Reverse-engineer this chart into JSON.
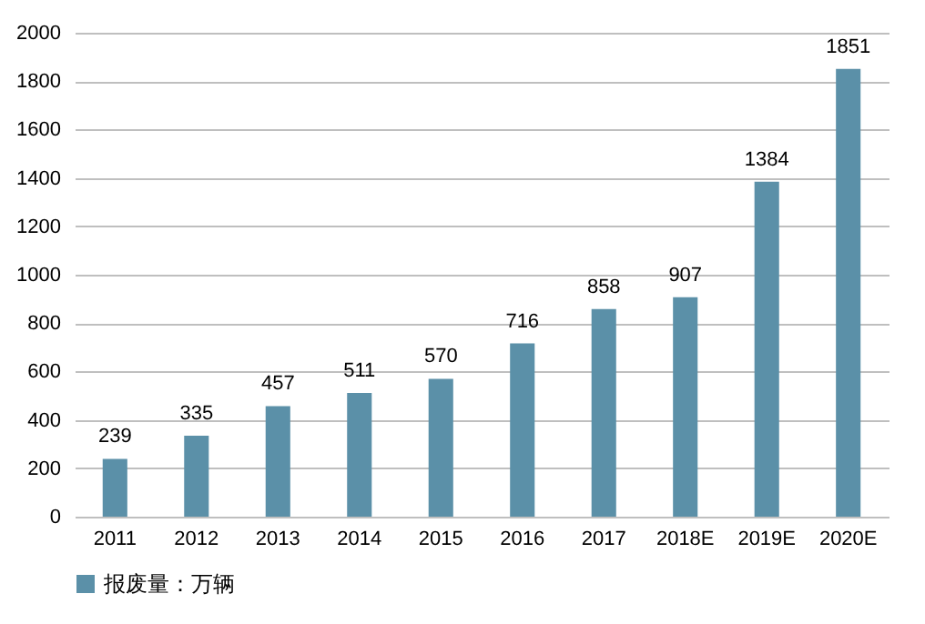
{
  "chart_data": {
    "type": "bar",
    "categories": [
      "2011",
      "2012",
      "2013",
      "2014",
      "2015",
      "2016",
      "2017",
      "2018E",
      "2019E",
      "2020E"
    ],
    "series": [
      {
        "name": "报废量：万辆",
        "color": "#5b90a8",
        "values": [
          239,
          335,
          457,
          511,
          570,
          716,
          858,
          907,
          1384,
          1851
        ]
      }
    ],
    "ylim": [
      0,
      2000
    ],
    "yticks": [
      0,
      200,
      400,
      600,
      800,
      1000,
      1200,
      1400,
      1600,
      1800,
      2000
    ],
    "grid": "y",
    "legend": "bottom left",
    "data_labels": true
  }
}
